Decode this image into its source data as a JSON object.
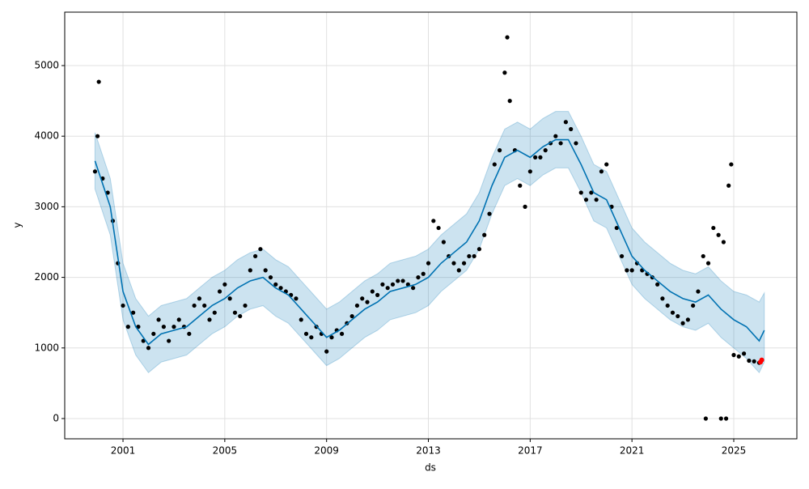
{
  "chart_data": {
    "type": "forecast",
    "xlabel": "ds",
    "ylabel": "y",
    "xlim": [
      1998.71,
      2027.48
    ],
    "ylim": [
      -287,
      5757
    ],
    "xticks": [
      2001,
      2005,
      2009,
      2013,
      2017,
      2021,
      2025
    ],
    "yticks": [
      0,
      1000,
      2000,
      3000,
      4000,
      5000
    ],
    "grid": true,
    "observed": {
      "color": "#000000",
      "x": [
        1999.9,
        2000.0,
        2000.05,
        2000.2,
        2000.4,
        2000.6,
        2000.8,
        2001.0,
        2001.2,
        2001.4,
        2001.6,
        2001.8,
        2002.0,
        2002.2,
        2002.4,
        2002.6,
        2002.8,
        2003.0,
        2003.2,
        2003.4,
        2003.6,
        2003.8,
        2004.0,
        2004.2,
        2004.4,
        2004.6,
        2004.8,
        2005.0,
        2005.2,
        2005.4,
        2005.6,
        2005.8,
        2006.0,
        2006.2,
        2006.4,
        2006.6,
        2006.8,
        2007.0,
        2007.2,
        2007.4,
        2007.6,
        2007.8,
        2008.0,
        2008.2,
        2008.4,
        2008.6,
        2008.8,
        2009.0,
        2009.2,
        2009.4,
        2009.6,
        2009.8,
        2010.0,
        2010.2,
        2010.4,
        2010.6,
        2010.8,
        2011.0,
        2011.2,
        2011.4,
        2011.6,
        2011.8,
        2012.0,
        2012.2,
        2012.4,
        2012.6,
        2012.8,
        2013.0,
        2013.2,
        2013.4,
        2013.6,
        2013.8,
        2014.0,
        2014.2,
        2014.4,
        2014.6,
        2014.8,
        2015.0,
        2015.2,
        2015.4,
        2015.6,
        2015.8,
        2016.0,
        2016.1,
        2016.2,
        2016.4,
        2016.6,
        2016.8,
        2017.0,
        2017.2,
        2017.4,
        2017.6,
        2017.8,
        2018.0,
        2018.2,
        2018.4,
        2018.6,
        2018.8,
        2019.0,
        2019.2,
        2019.4,
        2019.6,
        2019.8,
        2020.0,
        2020.2,
        2020.4,
        2020.6,
        2020.8,
        2021.0,
        2021.2,
        2021.4,
        2021.6,
        2021.8,
        2022.0,
        2022.2,
        2022.4,
        2022.6,
        2022.8,
        2023.0,
        2023.2,
        2023.4,
        2023.6,
        2023.8,
        2023.9,
        2024.0,
        2024.2,
        2024.4,
        2024.5,
        2024.6,
        2024.7,
        2024.8,
        2024.9,
        2025.0,
        2025.2,
        2025.4,
        2025.6,
        2025.8,
        2026.0
      ],
      "values": [
        3500,
        4000,
        4770,
        3400,
        3200,
        2800,
        2200,
        1600,
        1300,
        1500,
        1300,
        1100,
        1000,
        1200,
        1400,
        1300,
        1100,
        1300,
        1400,
        1300,
        1200,
        1600,
        1700,
        1600,
        1400,
        1500,
        1800,
        1900,
        1700,
        1500,
        1450,
        1600,
        2100,
        2300,
        2400,
        2100,
        2000,
        1900,
        1850,
        1800,
        1750,
        1700,
        1400,
        1200,
        1150,
        1300,
        1200,
        950,
        1150,
        1250,
        1200,
        1350,
        1450,
        1600,
        1700,
        1650,
        1800,
        1750,
        1900,
        1850,
        1900,
        1950,
        1950,
        1900,
        1850,
        2000,
        2050,
        2200,
        2800,
        2700,
        2500,
        2300,
        2200,
        2100,
        2200,
        2300,
        2300,
        2400,
        2600,
        2900,
        3600,
        3800,
        4900,
        5400,
        4500,
        3800,
        3300,
        3000,
        3500,
        3700,
        3700,
        3800,
        3900,
        4000,
        3900,
        4200,
        4100,
        3900,
        3200,
        3100,
        3200,
        3100,
        3500,
        3600,
        3000,
        2700,
        2300,
        2100,
        2100,
        2200,
        2100,
        2050,
        2000,
        1900,
        1700,
        1600,
        1500,
        1450,
        1350,
        1400,
        1600,
        1800,
        2300,
        0,
        2200,
        2700,
        2600,
        0,
        2500,
        0,
        3300,
        3600,
        900,
        880,
        920,
        820,
        810,
        790
      ]
    },
    "recent": {
      "color": "#ff0000",
      "x": [
        2026.05,
        2026.1
      ],
      "values": [
        800,
        830
      ]
    },
    "forecast": {
      "color": "#0072b2",
      "x": [
        1999.9,
        2000.5,
        2001.0,
        2001.5,
        2002.0,
        2002.5,
        2003.0,
        2003.5,
        2004.0,
        2004.5,
        2005.0,
        2005.5,
        2006.0,
        2006.5,
        2007.0,
        2007.5,
        2008.0,
        2008.5,
        2009.0,
        2009.5,
        2010.0,
        2010.5,
        2011.0,
        2011.5,
        2012.0,
        2012.5,
        2013.0,
        2013.5,
        2014.0,
        2014.5,
        2015.0,
        2015.5,
        2016.0,
        2016.5,
        2017.0,
        2017.5,
        2018.0,
        2018.5,
        2019.0,
        2019.5,
        2020.0,
        2020.5,
        2021.0,
        2021.5,
        2022.0,
        2022.5,
        2023.0,
        2023.5,
        2024.0,
        2024.5,
        2025.0,
        2025.5,
        2026.0,
        2026.2
      ],
      "values": [
        3650,
        3000,
        1800,
        1300,
        1050,
        1200,
        1250,
        1300,
        1450,
        1600,
        1700,
        1850,
        1950,
        2000,
        1850,
        1750,
        1550,
        1350,
        1150,
        1250,
        1400,
        1550,
        1650,
        1800,
        1850,
        1900,
        2000,
        2200,
        2350,
        2500,
        2800,
        3300,
        3700,
        3800,
        3700,
        3850,
        3950,
        3950,
        3600,
        3200,
        3100,
        2700,
        2300,
        2100,
        1950,
        1800,
        1700,
        1650,
        1750,
        1550,
        1400,
        1300,
        1100,
        1250
      ],
      "upper": [
        4050,
        3400,
        2200,
        1700,
        1450,
        1600,
        1650,
        1700,
        1850,
        2000,
        2100,
        2250,
        2350,
        2400,
        2250,
        2150,
        1950,
        1750,
        1550,
        1650,
        1800,
        1950,
        2050,
        2200,
        2250,
        2300,
        2400,
        2600,
        2750,
        2900,
        3200,
        3700,
        4100,
        4200,
        4100,
        4250,
        4350,
        4350,
        4000,
        3600,
        3500,
        3100,
        2700,
        2500,
        2350,
        2200,
        2100,
        2050,
        2150,
        1950,
        1800,
        1750,
        1650,
        1780
      ],
      "lower": [
        3250,
        2600,
        1400,
        900,
        650,
        800,
        850,
        900,
        1050,
        1200,
        1300,
        1450,
        1550,
        1600,
        1450,
        1350,
        1150,
        950,
        750,
        850,
        1000,
        1150,
        1250,
        1400,
        1450,
        1500,
        1600,
        1800,
        1950,
        2100,
        2400,
        2900,
        3300,
        3400,
        3300,
        3450,
        3550,
        3550,
        3200,
        2800,
        2700,
        2300,
        1900,
        1700,
        1550,
        1400,
        1300,
        1250,
        1350,
        1150,
        1000,
        850,
        650,
        800
      ]
    }
  }
}
